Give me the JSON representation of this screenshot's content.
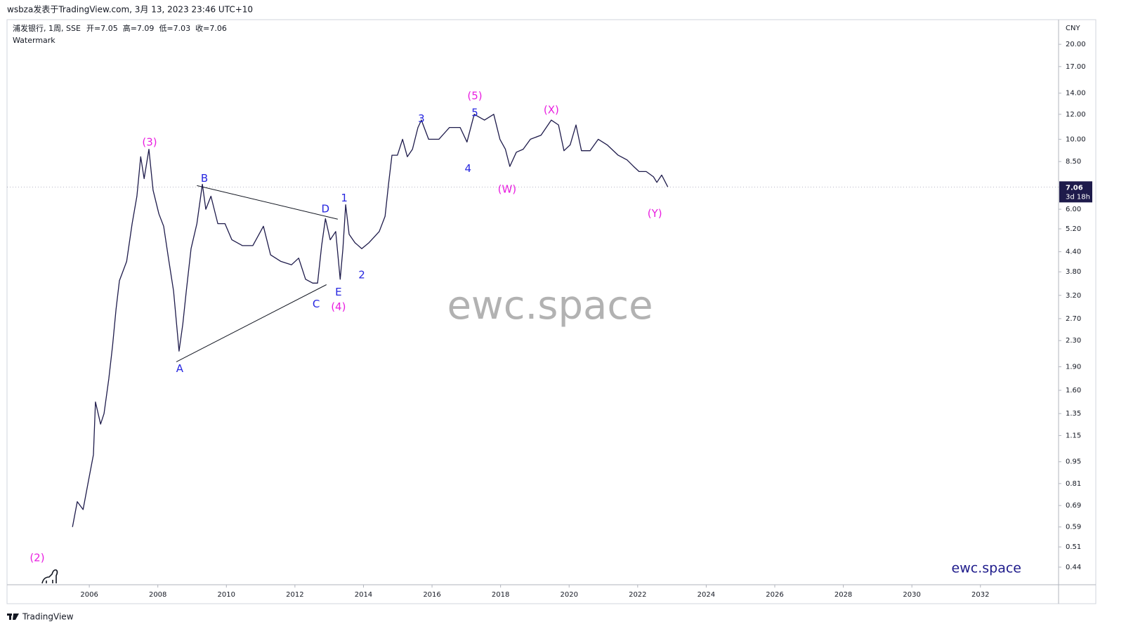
{
  "header": "wsbza发表于TradingView.com, 3月 13, 2023 23:46 UTC+10",
  "footer": "TradingView",
  "chart_data": {
    "type": "line",
    "symbol": "浦发银行, 1周, SSE",
    "ohlc": [
      "开=7.05",
      "高=7.09",
      "低=7.03",
      "收=7.06"
    ],
    "indicator": "Watermark",
    "watermark": "ewc.space",
    "brand": "ewc.space",
    "currency": "CNY",
    "last_price": 7.06,
    "countdown": "3d 18h",
    "log_scale": true,
    "color": "#1e1b4b",
    "x": [
      2005.51,
      2005.65,
      2005.82,
      2005.96,
      2006.12,
      2006.18,
      2006.33,
      2006.43,
      2006.57,
      2006.68,
      2006.78,
      2006.88,
      2007.09,
      2007.25,
      2007.39,
      2007.5,
      2007.6,
      2007.74,
      2007.86,
      2008.03,
      2008.17,
      2008.31,
      2008.46,
      2008.62,
      2008.73,
      2008.83,
      2008.97,
      2009.14,
      2009.3,
      2009.4,
      2009.55,
      2009.75,
      2009.96,
      2010.16,
      2010.47,
      2010.77,
      2011.08,
      2011.29,
      2011.59,
      2011.9,
      2012.11,
      2012.31,
      2012.52,
      2012.66,
      2012.78,
      2012.89,
      2013.03,
      2013.19,
      2013.32,
      2013.4,
      2013.48,
      2013.58,
      2013.75,
      2013.95,
      2014.16,
      2014.46,
      2014.63,
      2014.73,
      2014.83,
      2014.99,
      2015.14,
      2015.28,
      2015.43,
      2015.59,
      2015.69,
      2015.9,
      2016.2,
      2016.51,
      2016.82,
      2017.02,
      2017.23,
      2017.53,
      2017.8,
      2017.98,
      2018.14,
      2018.27,
      2018.46,
      2018.66,
      2018.87,
      2019.18,
      2019.48,
      2019.69,
      2019.85,
      2020.03,
      2020.2,
      2020.36,
      2020.61,
      2020.85,
      2021.11,
      2021.43,
      2021.69,
      2021.88,
      2022.04,
      2022.25,
      2022.46,
      2022.56,
      2022.7,
      2022.88
    ],
    "values": [
      0.59,
      0.71,
      0.67,
      0.81,
      1.0,
      1.47,
      1.25,
      1.35,
      1.74,
      2.22,
      2.89,
      3.56,
      4.1,
      5.4,
      6.6,
      8.8,
      7.5,
      9.3,
      6.9,
      5.8,
      5.3,
      4.2,
      3.3,
      2.13,
      2.6,
      3.3,
      4.5,
      5.4,
      7.2,
      6.0,
      6.6,
      5.4,
      5.4,
      4.8,
      4.6,
      4.6,
      5.3,
      4.3,
      4.1,
      4.0,
      4.2,
      3.6,
      3.5,
      3.5,
      4.6,
      5.6,
      4.8,
      5.1,
      3.6,
      4.5,
      6.2,
      5.0,
      4.7,
      4.5,
      4.7,
      5.1,
      5.7,
      7.2,
      8.9,
      8.9,
      10.0,
      8.8,
      9.3,
      10.9,
      11.5,
      10.0,
      10.0,
      10.9,
      10.9,
      9.8,
      12.0,
      11.5,
      12.0,
      10.0,
      9.3,
      8.2,
      9.1,
      9.3,
      10.0,
      10.3,
      11.5,
      11.1,
      9.2,
      9.6,
      11.1,
      9.2,
      9.2,
      10.0,
      9.6,
      8.9,
      8.6,
      8.2,
      7.9,
      7.9,
      7.6,
      7.3,
      7.7,
      7.06
    ],
    "xlim": [
      2003.6,
      2034.28
    ],
    "xticks": [
      2006,
      2008,
      2010,
      2012,
      2014,
      2016,
      2018,
      2020,
      2022,
      2024,
      2026,
      2028,
      2030,
      2032
    ],
    "ylim": [
      0.387,
      23.7
    ],
    "yticks": [
      0.44,
      0.51,
      0.59,
      0.69,
      0.81,
      0.95,
      1.15,
      1.35,
      {
        "value": 1.6,
        "label": "1.60"
      },
      {
        "value": 1.9,
        "label": "1.90"
      },
      {
        "value": 2.3,
        "label": "2.30"
      },
      {
        "value": 2.7,
        "label": "2.70"
      },
      {
        "value": 3.2,
        "label": "3.20"
      },
      {
        "value": 3.8,
        "label": "3.80"
      },
      {
        "value": 4.4,
        "label": "4.40"
      },
      {
        "value": 5.2,
        "label": "5.20"
      },
      {
        "value": 6,
        "label": "6.00"
      },
      {
        "value": 8.5,
        "label": "8.50"
      },
      {
        "value": 10,
        "label": "10.00"
      },
      {
        "value": 12,
        "label": "12.00"
      },
      {
        "value": 14,
        "label": "14.00"
      },
      {
        "value": 17,
        "label": "17.00"
      },
      {
        "value": 20,
        "label": "20.00"
      }
    ],
    "trendlines": [
      {
        "x": [
          2008.54,
          2012.92
        ],
        "y": [
          1.97,
          3.46
        ]
      },
      {
        "x": [
          2009.14,
          2013.25
        ],
        "y": [
          7.13,
          5.58
        ]
      }
    ],
    "annotations": [
      {
        "text": "(2)",
        "x": 2004.48,
        "y": 0.47,
        "color": "#e91ee0"
      },
      {
        "text": "(3)",
        "x": 2007.76,
        "y": 9.77,
        "color": "#e91ee0"
      },
      {
        "text": "(4)",
        "x": 2013.27,
        "y": 2.94,
        "color": "#e91ee0"
      },
      {
        "text": "(5)",
        "x": 2017.25,
        "y": 13.7,
        "color": "#e91ee0"
      },
      {
        "text": "(W)",
        "x": 2018.19,
        "y": 6.92,
        "color": "#e91ee0"
      },
      {
        "text": "(X)",
        "x": 2019.48,
        "y": 12.35,
        "color": "#e91ee0"
      },
      {
        "text": "(Y)",
        "x": 2022.5,
        "y": 5.81,
        "color": "#e91ee0"
      },
      {
        "text": "A",
        "x": 2008.64,
        "y": 1.87,
        "color": "#2626e0"
      },
      {
        "text": "B",
        "x": 2009.36,
        "y": 7.5,
        "color": "#2626e0"
      },
      {
        "text": "C",
        "x": 2012.62,
        "y": 3.0,
        "color": "#2626e0"
      },
      {
        "text": "D",
        "x": 2012.89,
        "y": 6.0,
        "color": "#2626e0"
      },
      {
        "text": "E",
        "x": 2013.27,
        "y": 3.27,
        "color": "#2626e0"
      },
      {
        "text": "1",
        "x": 2013.44,
        "y": 6.5,
        "color": "#2626e0"
      },
      {
        "text": "2",
        "x": 2013.95,
        "y": 3.71,
        "color": "#2626e0"
      },
      {
        "text": "3",
        "x": 2015.69,
        "y": 11.6,
        "color": "#2626e0"
      },
      {
        "text": "4",
        "x": 2017.05,
        "y": 8.06,
        "color": "#2626e0"
      },
      {
        "text": "5",
        "x": 2017.25,
        "y": 12.1,
        "color": "#2626e0"
      }
    ]
  }
}
